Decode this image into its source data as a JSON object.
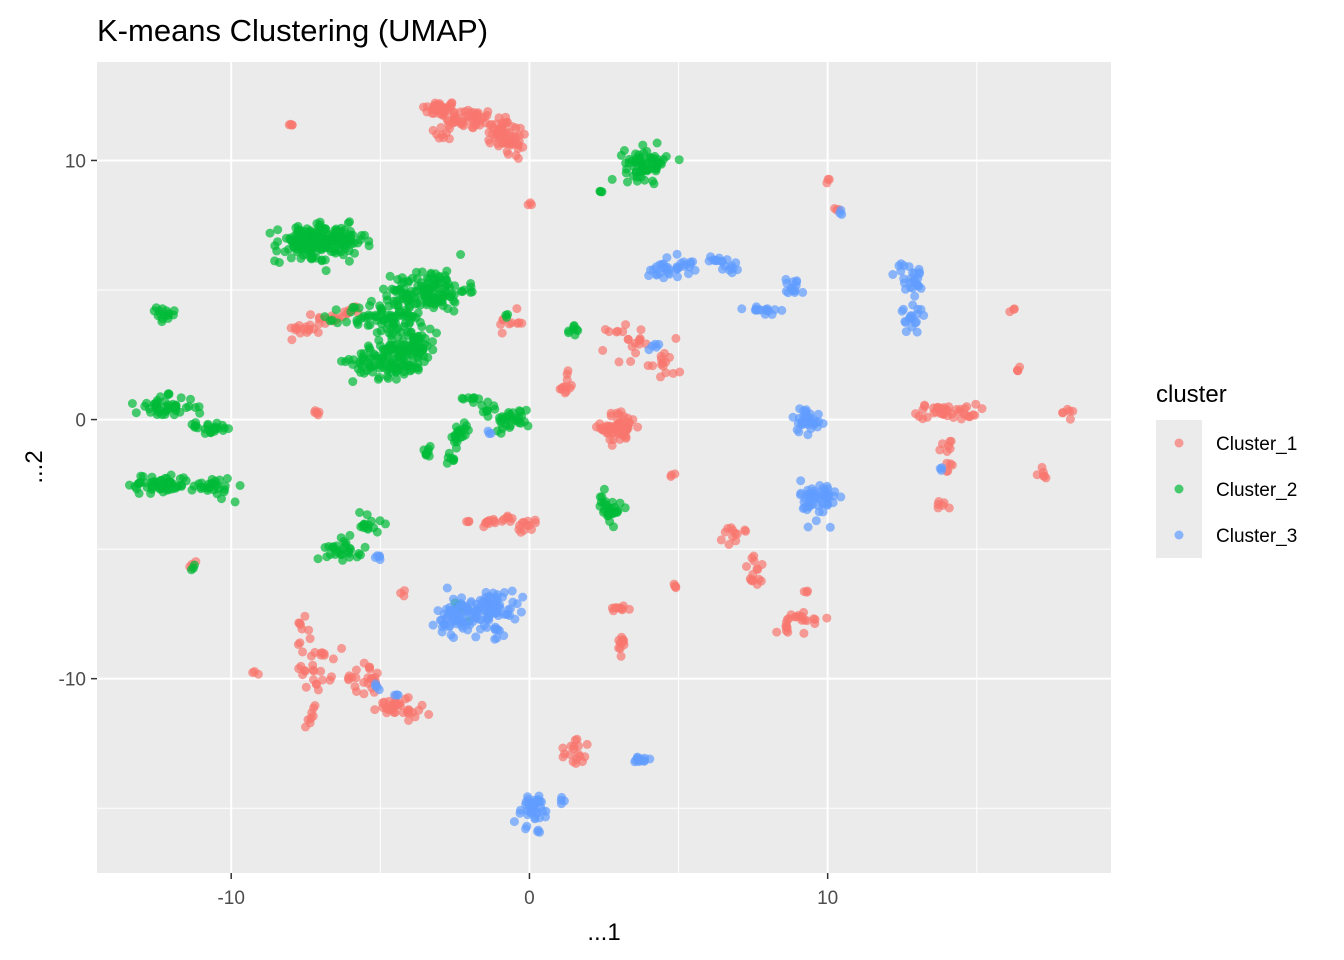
{
  "chart_data": {
    "type": "scatter",
    "title": "K-means Clustering (UMAP)",
    "xlabel": "...1",
    "ylabel": "...2",
    "xlim": [
      -14.5,
      19.5
    ],
    "ylim": [
      -17.5,
      13.8
    ],
    "x_ticks": [
      -10,
      0,
      10
    ],
    "y_ticks": [
      10,
      0,
      -10
    ],
    "x_minor": [
      -15,
      -5,
      5,
      15
    ],
    "y_minor": [
      15,
      5,
      -5,
      -15
    ],
    "grid": true,
    "panel_background": "#ebebeb",
    "legend": {
      "title": "cluster",
      "position": "right",
      "entries": [
        "Cluster_1",
        "Cluster_2",
        "Cluster_3"
      ]
    },
    "series": [
      {
        "name": "Cluster_1",
        "color": "#f8766d",
        "clusters": [
          {
            "x": -3,
            "y": 12,
            "sx": 0.3,
            "sy": 0.15,
            "n": 40
          },
          {
            "x": -2,
            "y": 11.6,
            "sx": 0.4,
            "sy": 0.2,
            "n": 40
          },
          {
            "x": -1,
            "y": 11.2,
            "sx": 0.3,
            "sy": 0.3,
            "n": 40
          },
          {
            "x": -0.6,
            "y": 10.6,
            "sx": 0.3,
            "sy": 0.3,
            "n": 25
          },
          {
            "x": -2.8,
            "y": 11.1,
            "sx": 0.2,
            "sy": 0.2,
            "n": 10
          },
          {
            "x": -8,
            "y": 11.4,
            "sx": 0.05,
            "sy": 0.05,
            "n": 4
          },
          {
            "x": 0,
            "y": 8.3,
            "sx": 0.05,
            "sy": 0.05,
            "n": 3
          },
          {
            "x": 10,
            "y": 9.2,
            "sx": 0.05,
            "sy": 0.05,
            "n": 3
          },
          {
            "x": 10.3,
            "y": 8.1,
            "sx": 0.05,
            "sy": 0.05,
            "n": 3
          },
          {
            "x": -7.5,
            "y": 3.5,
            "sx": 0.3,
            "sy": 0.1,
            "n": 15
          },
          {
            "x": -6.6,
            "y": 3.9,
            "sx": 0.3,
            "sy": 0.15,
            "n": 15
          },
          {
            "x": -5.9,
            "y": 4.2,
            "sx": 0.2,
            "sy": 0.1,
            "n": 10
          },
          {
            "x": -7.2,
            "y": 0.2,
            "sx": 0.1,
            "sy": 0.1,
            "n": 5
          },
          {
            "x": -0.6,
            "y": 3.8,
            "sx": 0.2,
            "sy": 0.2,
            "n": 10
          },
          {
            "x": 1.2,
            "y": 1.3,
            "sx": 0.15,
            "sy": 0.25,
            "n": 12
          },
          {
            "x": 3.2,
            "y": 3,
            "sx": 0.3,
            "sy": 0.4,
            "n": 20
          },
          {
            "x": 4.5,
            "y": 2.2,
            "sx": 0.3,
            "sy": 0.4,
            "n": 15
          },
          {
            "x": 3,
            "y": -0.3,
            "sx": 0.3,
            "sy": 0.3,
            "n": 60
          },
          {
            "x": 4.8,
            "y": -2.1,
            "sx": 0.05,
            "sy": 0.05,
            "n": 3
          },
          {
            "x": 14,
            "y": 0.3,
            "sx": 0.5,
            "sy": 0.15,
            "n": 40
          },
          {
            "x": 16.2,
            "y": 4.2,
            "sx": 0.05,
            "sy": 0.05,
            "n": 3
          },
          {
            "x": 16.4,
            "y": 1.9,
            "sx": 0.05,
            "sy": 0.08,
            "n": 4
          },
          {
            "x": 18,
            "y": 0.3,
            "sx": 0.15,
            "sy": 0.1,
            "n": 6
          },
          {
            "x": 17.2,
            "y": -2.1,
            "sx": 0.1,
            "sy": 0.1,
            "n": 6
          },
          {
            "x": 14,
            "y": -1.5,
            "sx": 0.2,
            "sy": 0.5,
            "n": 12
          },
          {
            "x": 13.8,
            "y": -3.3,
            "sx": 0.1,
            "sy": 0.1,
            "n": 6
          },
          {
            "x": -1.2,
            "y": -3.9,
            "sx": 0.4,
            "sy": 0.1,
            "n": 20
          },
          {
            "x": -0.1,
            "y": -4.1,
            "sx": 0.2,
            "sy": 0.1,
            "n": 12
          },
          {
            "x": -4.3,
            "y": -6.7,
            "sx": 0.05,
            "sy": 0.05,
            "n": 3
          },
          {
            "x": 6.9,
            "y": -4.5,
            "sx": 0.2,
            "sy": 0.2,
            "n": 12
          },
          {
            "x": 7.6,
            "y": -5.9,
            "sx": 0.2,
            "sy": 0.3,
            "n": 15
          },
          {
            "x": 4.9,
            "y": -6.4,
            "sx": 0.05,
            "sy": 0.1,
            "n": 4
          },
          {
            "x": 3,
            "y": -7.3,
            "sx": 0.2,
            "sy": 0.1,
            "n": 10
          },
          {
            "x": 3.1,
            "y": -8.8,
            "sx": 0.1,
            "sy": 0.2,
            "n": 10
          },
          {
            "x": 9.2,
            "y": -7.7,
            "sx": 0.4,
            "sy": 0.2,
            "n": 18
          },
          {
            "x": 8.6,
            "y": -8.1,
            "sx": 0.15,
            "sy": 0.1,
            "n": 6
          },
          {
            "x": 9.3,
            "y": -6.6,
            "sx": 0.05,
            "sy": 0.05,
            "n": 3
          },
          {
            "x": -7.2,
            "y": -9.5,
            "sx": 0.3,
            "sy": 0.5,
            "n": 30
          },
          {
            "x": -7.6,
            "y": -8,
            "sx": 0.1,
            "sy": 0.2,
            "n": 6
          },
          {
            "x": -7.3,
            "y": -11.3,
            "sx": 0.1,
            "sy": 0.3,
            "n": 8
          },
          {
            "x": -5.6,
            "y": -10,
            "sx": 0.3,
            "sy": 0.3,
            "n": 25
          },
          {
            "x": -4.5,
            "y": -11,
            "sx": 0.3,
            "sy": 0.2,
            "n": 25
          },
          {
            "x": -3.9,
            "y": -11.3,
            "sx": 0.3,
            "sy": 0.08,
            "n": 10
          },
          {
            "x": -9.2,
            "y": -9.8,
            "sx": 0.05,
            "sy": 0.05,
            "n": 3
          },
          {
            "x": -11.3,
            "y": -5.6,
            "sx": 0.08,
            "sy": 0.08,
            "n": 4
          },
          {
            "x": 1.5,
            "y": -12.5,
            "sx": 0.15,
            "sy": 0.2,
            "n": 8
          },
          {
            "x": 1.6,
            "y": -13.1,
            "sx": 0.2,
            "sy": 0.12,
            "n": 10
          }
        ]
      },
      {
        "name": "Cluster_2",
        "color": "#00ba38",
        "clusters": [
          {
            "x": -7.5,
            "y": 6.8,
            "sx": 0.5,
            "sy": 0.35,
            "n": 110
          },
          {
            "x": -6.5,
            "y": 6.9,
            "sx": 0.5,
            "sy": 0.3,
            "n": 90
          },
          {
            "x": -3.3,
            "y": 5,
            "sx": 0.6,
            "sy": 0.4,
            "n": 120
          },
          {
            "x": -5.3,
            "y": 3.9,
            "sx": 0.5,
            "sy": 0.3,
            "n": 40
          },
          {
            "x": -4.3,
            "y": 4,
            "sx": 0.5,
            "sy": 0.5,
            "n": 60
          },
          {
            "x": -4.7,
            "y": 2.3,
            "sx": 0.6,
            "sy": 0.35,
            "n": 110
          },
          {
            "x": -3.9,
            "y": 2.8,
            "sx": 0.4,
            "sy": 0.35,
            "n": 60
          },
          {
            "x": 3.9,
            "y": 9.9,
            "sx": 0.35,
            "sy": 0.3,
            "n": 70
          },
          {
            "x": 2.4,
            "y": 8.8,
            "sx": 0.05,
            "sy": 0.05,
            "n": 4
          },
          {
            "x": -12.3,
            "y": 4,
            "sx": 0.2,
            "sy": 0.15,
            "n": 15
          },
          {
            "x": -12.2,
            "y": 0.5,
            "sx": 0.5,
            "sy": 0.2,
            "n": 50
          },
          {
            "x": -10.7,
            "y": -0.3,
            "sx": 0.4,
            "sy": 0.1,
            "n": 25
          },
          {
            "x": -12.4,
            "y": -2.5,
            "sx": 0.5,
            "sy": 0.2,
            "n": 55
          },
          {
            "x": -10.7,
            "y": -2.6,
            "sx": 0.4,
            "sy": 0.2,
            "n": 30
          },
          {
            "x": -6.2,
            "y": -5,
            "sx": 0.3,
            "sy": 0.2,
            "n": 30
          },
          {
            "x": -5.4,
            "y": -4,
            "sx": 0.2,
            "sy": 0.3,
            "n": 15
          },
          {
            "x": -3.5,
            "y": -1.3,
            "sx": 0.1,
            "sy": 0.2,
            "n": 8
          },
          {
            "x": -2.3,
            "y": -0.6,
            "sx": 0.2,
            "sy": 0.2,
            "n": 20
          },
          {
            "x": -2.6,
            "y": -1.6,
            "sx": 0.1,
            "sy": 0.2,
            "n": 8
          },
          {
            "x": -2,
            "y": 0.8,
            "sx": 0.15,
            "sy": 0.1,
            "n": 8
          },
          {
            "x": -1.3,
            "y": 0.4,
            "sx": 0.2,
            "sy": 0.2,
            "n": 10
          },
          {
            "x": -0.6,
            "y": 0,
            "sx": 0.3,
            "sy": 0.2,
            "n": 30
          },
          {
            "x": 1.5,
            "y": 3.4,
            "sx": 0.1,
            "sy": 0.15,
            "n": 8
          },
          {
            "x": 2.7,
            "y": -3.4,
            "sx": 0.2,
            "sy": 0.3,
            "n": 30
          },
          {
            "x": -11.3,
            "y": -5.7,
            "sx": 0.05,
            "sy": 0.05,
            "n": 3
          },
          {
            "x": -2.3,
            "y": -7.4,
            "sx": 0.2,
            "sy": 0.2,
            "n": 8
          },
          {
            "x": -0.8,
            "y": 4,
            "sx": 0.05,
            "sy": 0.05,
            "n": 3
          }
        ]
      },
      {
        "name": "Cluster_3",
        "color": "#619cff",
        "clusters": [
          {
            "x": 4.7,
            "y": 5.9,
            "sx": 0.4,
            "sy": 0.2,
            "n": 35
          },
          {
            "x": 6.3,
            "y": 6.1,
            "sx": 0.3,
            "sy": 0.1,
            "n": 12
          },
          {
            "x": 6.8,
            "y": 5.8,
            "sx": 0.15,
            "sy": 0.15,
            "n": 8
          },
          {
            "x": 7.7,
            "y": 4.3,
            "sx": 0.3,
            "sy": 0.1,
            "n": 15
          },
          {
            "x": 8.9,
            "y": 5.1,
            "sx": 0.2,
            "sy": 0.2,
            "n": 15
          },
          {
            "x": 12.7,
            "y": 5.5,
            "sx": 0.25,
            "sy": 0.3,
            "n": 25
          },
          {
            "x": 12.9,
            "y": 3.9,
            "sx": 0.2,
            "sy": 0.3,
            "n": 20
          },
          {
            "x": 10.4,
            "y": 8,
            "sx": 0.05,
            "sy": 0.05,
            "n": 3
          },
          {
            "x": 9.3,
            "y": 0,
            "sx": 0.25,
            "sy": 0.25,
            "n": 35
          },
          {
            "x": 9.7,
            "y": -3.1,
            "sx": 0.3,
            "sy": 0.4,
            "n": 60
          },
          {
            "x": 4.2,
            "y": 2.8,
            "sx": 0.1,
            "sy": 0.1,
            "n": 5
          },
          {
            "x": 13.8,
            "y": -1.9,
            "sx": 0.05,
            "sy": 0.05,
            "n": 3
          },
          {
            "x": -2.3,
            "y": -7.6,
            "sx": 0.4,
            "sy": 0.4,
            "n": 70
          },
          {
            "x": -1.2,
            "y": -7.2,
            "sx": 0.4,
            "sy": 0.3,
            "n": 60
          },
          {
            "x": -1.1,
            "y": -8.1,
            "sx": 0.2,
            "sy": 0.2,
            "n": 10
          },
          {
            "x": -5.1,
            "y": -5.3,
            "sx": 0.1,
            "sy": 0.1,
            "n": 5
          },
          {
            "x": -5.1,
            "y": -10.3,
            "sx": 0.08,
            "sy": 0.08,
            "n": 4
          },
          {
            "x": -4.5,
            "y": -10.6,
            "sx": 0.05,
            "sy": 0.05,
            "n": 3
          },
          {
            "x": -1.4,
            "y": -0.5,
            "sx": 0.1,
            "sy": 0.1,
            "n": 3
          },
          {
            "x": 3.7,
            "y": -13.2,
            "sx": 0.3,
            "sy": 0.1,
            "n": 12
          },
          {
            "x": 0.1,
            "y": -15,
            "sx": 0.35,
            "sy": 0.3,
            "n": 40
          },
          {
            "x": 1.1,
            "y": -14.7,
            "sx": 0.05,
            "sy": 0.05,
            "n": 3
          },
          {
            "x": 0.3,
            "y": -15.9,
            "sx": 0.05,
            "sy": 0.05,
            "n": 3
          }
        ]
      }
    ]
  }
}
